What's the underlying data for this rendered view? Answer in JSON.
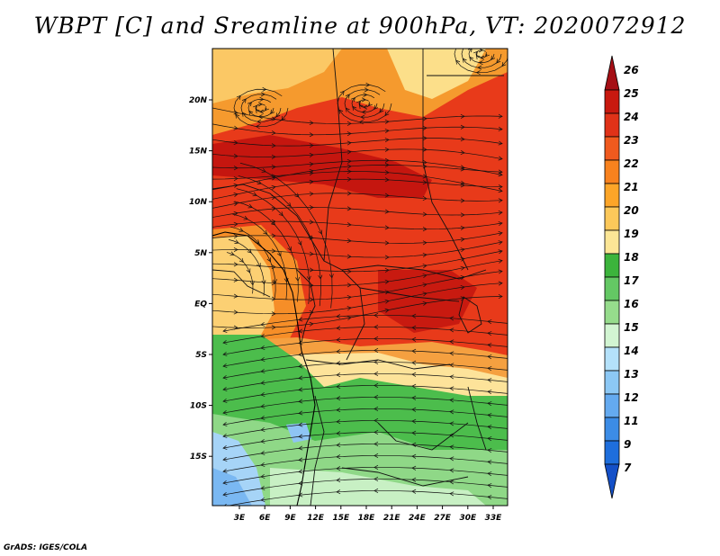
{
  "title": "WBPT [C] and Sreamline at 900hPa, VT: 2020072912",
  "credit": "GrADS: IGES/COLA",
  "map": {
    "lon_labels": [
      "3E",
      "6E",
      "9E",
      "12E",
      "15E",
      "18E",
      "21E",
      "24E",
      "27E",
      "30E",
      "33E"
    ],
    "lat_labels": [
      "20N",
      "15N",
      "10N",
      "5N",
      "EQ",
      "5S",
      "10S",
      "15S"
    ],
    "variable": "wet-bulb potential temperature",
    "level": "900hPa",
    "valid_time": "2020072912"
  },
  "colorbar": {
    "labels": [
      "26",
      "25",
      "24",
      "23",
      "22",
      "21",
      "20",
      "19",
      "18",
      "17",
      "16",
      "15",
      "14",
      "13",
      "12",
      "11",
      "9",
      "7"
    ],
    "colors": [
      "#a50f15",
      "#c8190f",
      "#e03218",
      "#f05a1e",
      "#f8821e",
      "#fca528",
      "#fcc85a",
      "#fce696",
      "#3cb43c",
      "#64c864",
      "#96dc8c",
      "#d2f5d2",
      "#b4e1fa",
      "#8cc8f5",
      "#64aaf0",
      "#3c8ce6",
      "#1e6edc",
      "#1450c8"
    ]
  }
}
